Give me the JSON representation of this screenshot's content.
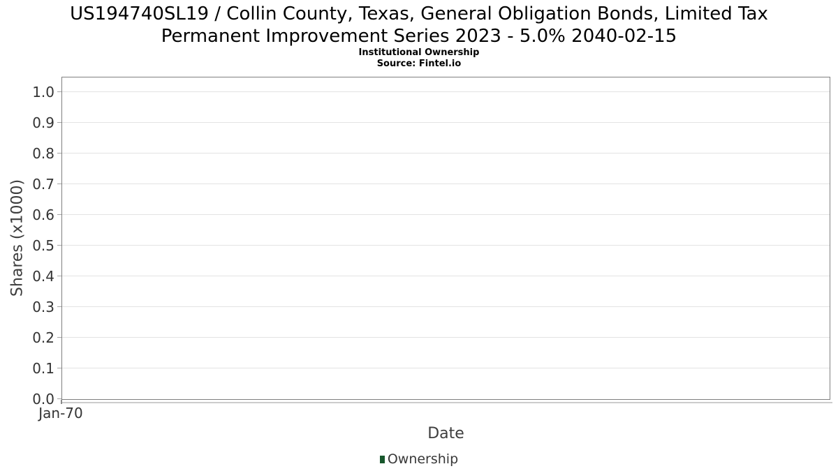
{
  "header": {
    "title_lines": [
      "US194740SL19 / Collin County, Texas, General Obligation Bonds, Limited Tax",
      "Permanent Improvement Series 2023 - 5.0% 2040-02-15"
    ],
    "subtitle": "Institutional Ownership",
    "source": "Source: Fintel.io"
  },
  "chart_data": {
    "type": "line",
    "title": "US194740SL19 / Collin County, Texas, General Obligation Bonds, Limited Tax Permanent Improvement Series 2023 - 5.0% 2040-02-15",
    "subtitle": "Institutional Ownership",
    "source": "Source: Fintel.io",
    "xlabel": "Date",
    "ylabel": "Shares (x1000)",
    "x_tick_labels": [
      "Jan-70"
    ],
    "y_tick_labels": [
      "0.0",
      "0.1",
      "0.2",
      "0.3",
      "0.4",
      "0.5",
      "0.6",
      "0.7",
      "0.8",
      "0.9",
      "1.0"
    ],
    "ylim": [
      0.0,
      1.05
    ],
    "grid": true,
    "legend": {
      "position": "bottom-center",
      "entries": [
        {
          "label": "Ownership",
          "color": "#17572c"
        }
      ]
    },
    "series": [
      {
        "name": "Ownership",
        "x": [],
        "values": []
      }
    ]
  },
  "colors": {
    "legend_swatch": "#17572c",
    "gridline": "#e3e3e3",
    "plot_border": "#7f7f7f",
    "axis_line": "#cccccc",
    "tick_label": "#333333",
    "axis_title": "#3d3d3d",
    "title": "#000000"
  }
}
